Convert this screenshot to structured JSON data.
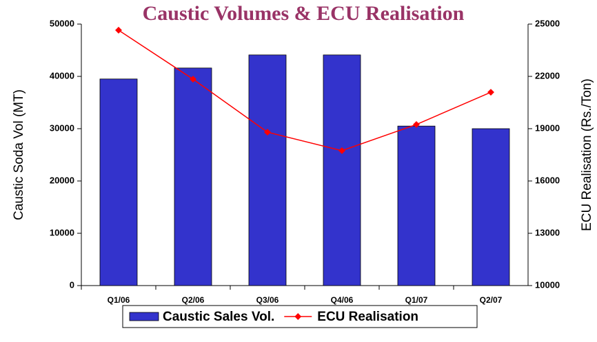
{
  "chart_data": {
    "type": "bar",
    "title": "Caustic Volumes & ECU Realisation",
    "y_label": "Caustic Soda Vol (MT)",
    "y2_label": "ECU Realisation (Rs./Ton)",
    "categories": [
      "Q1/06",
      "Q2/06",
      "Q3/06",
      "Q4/06",
      "Q1/07",
      "Q2/07"
    ],
    "series": [
      {
        "name": "Caustic Sales Vol.",
        "type": "bar",
        "color": "#3333cc",
        "values": [
          39500,
          41600,
          44100,
          44100,
          30500,
          30000
        ]
      },
      {
        "name": "ECU Realisation",
        "type": "line",
        "axis": "y2",
        "color": "#ff0000",
        "values": [
          24650,
          21840,
          18800,
          17740,
          19240,
          21090
        ]
      }
    ],
    "ylim": [
      0,
      50000
    ],
    "yticks": [
      0,
      10000,
      20000,
      30000,
      40000,
      50000
    ],
    "y2lim": [
      10000,
      25000
    ],
    "y2ticks": [
      10000,
      13000,
      16000,
      19000,
      22000,
      25000
    ],
    "legend": "bottom"
  }
}
